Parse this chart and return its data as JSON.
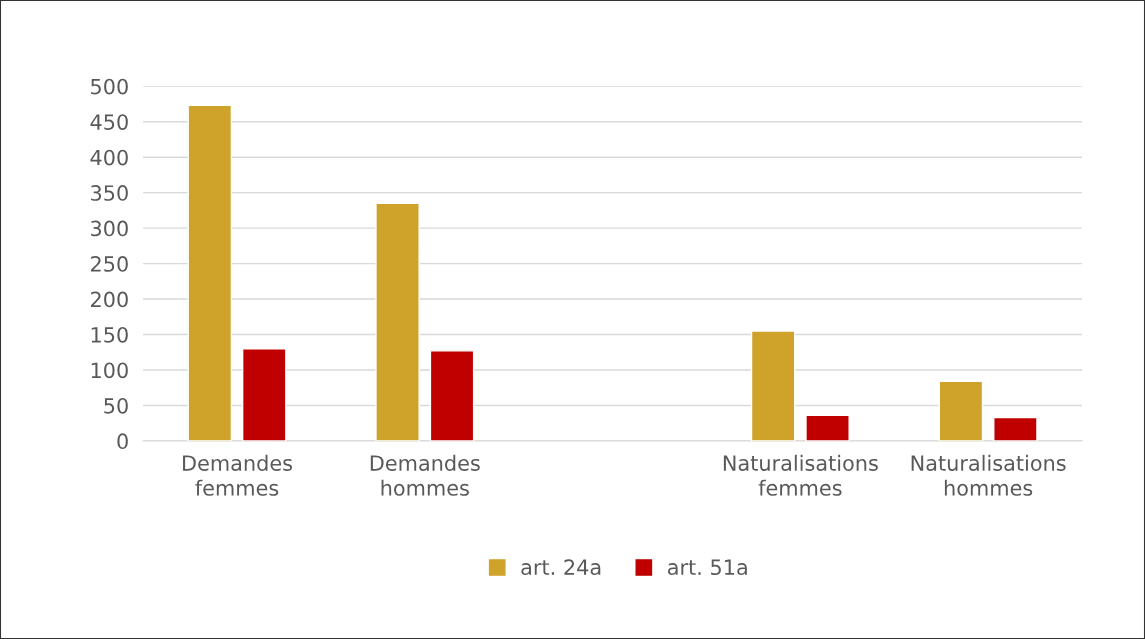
{
  "chart_data": {
    "type": "bar",
    "categories": [
      "Demandes femmes",
      "Demandes hommes",
      null,
      "Naturalisations femmes",
      "Naturalisations hommes"
    ],
    "series": [
      {
        "name": "art. 24a",
        "color": "#cfa22a",
        "values": [
          473,
          335,
          null,
          155,
          84
        ]
      },
      {
        "name": "art. 51a",
        "color": "#c00000",
        "values": [
          130,
          127,
          null,
          36,
          33
        ]
      }
    ],
    "ylim": [
      0,
      500
    ],
    "yticks": [
      0,
      50,
      100,
      150,
      200,
      250,
      300,
      350,
      400,
      450,
      500
    ],
    "grid": "y",
    "legend": "bottom"
  }
}
